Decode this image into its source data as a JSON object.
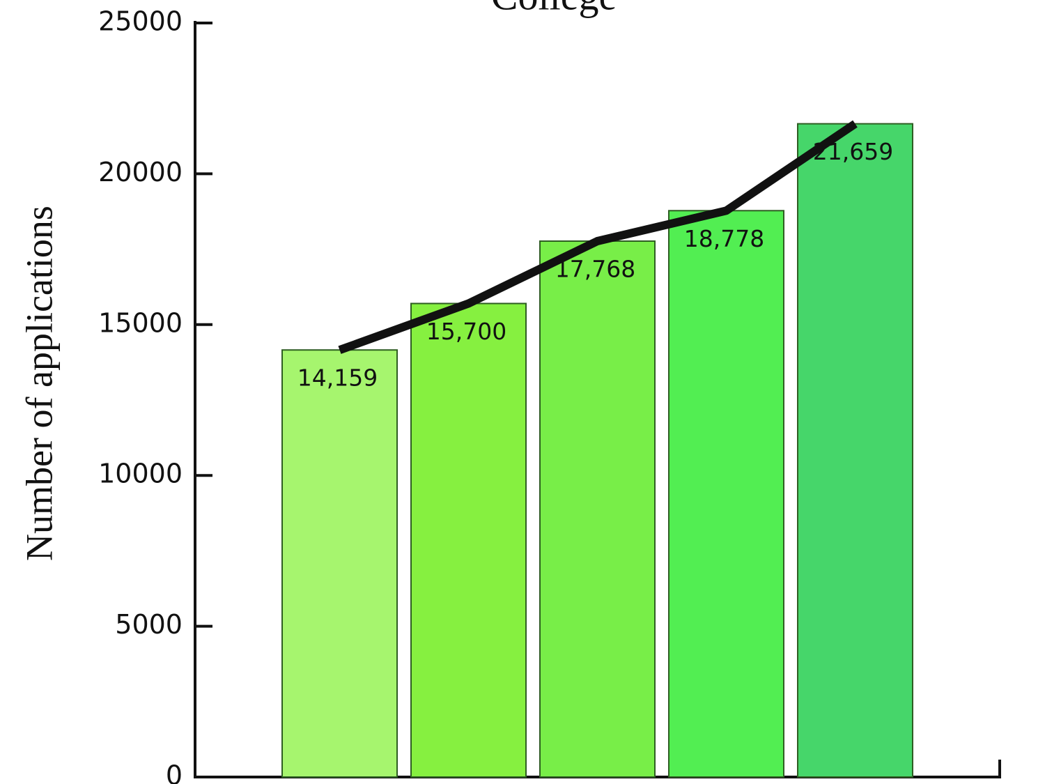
{
  "chart_data": {
    "type": "bar",
    "title": "College",
    "ylabel": "Number of applications",
    "categories": [
      null,
      null,
      null,
      null,
      null
    ],
    "values": [
      14159,
      15700,
      17768,
      18778,
      21659
    ],
    "value_labels": [
      "14,159",
      "15,700",
      "17,768",
      "18,778",
      "21,659"
    ],
    "colors": [
      "#a6f56e",
      "#86f040",
      "#78ee48",
      "#52ee52",
      "#46d66a"
    ],
    "line_color": "#111111",
    "ylim": [
      0,
      25000
    ],
    "yticks": [
      0,
      5000,
      10000,
      15000,
      20000,
      25000
    ]
  }
}
